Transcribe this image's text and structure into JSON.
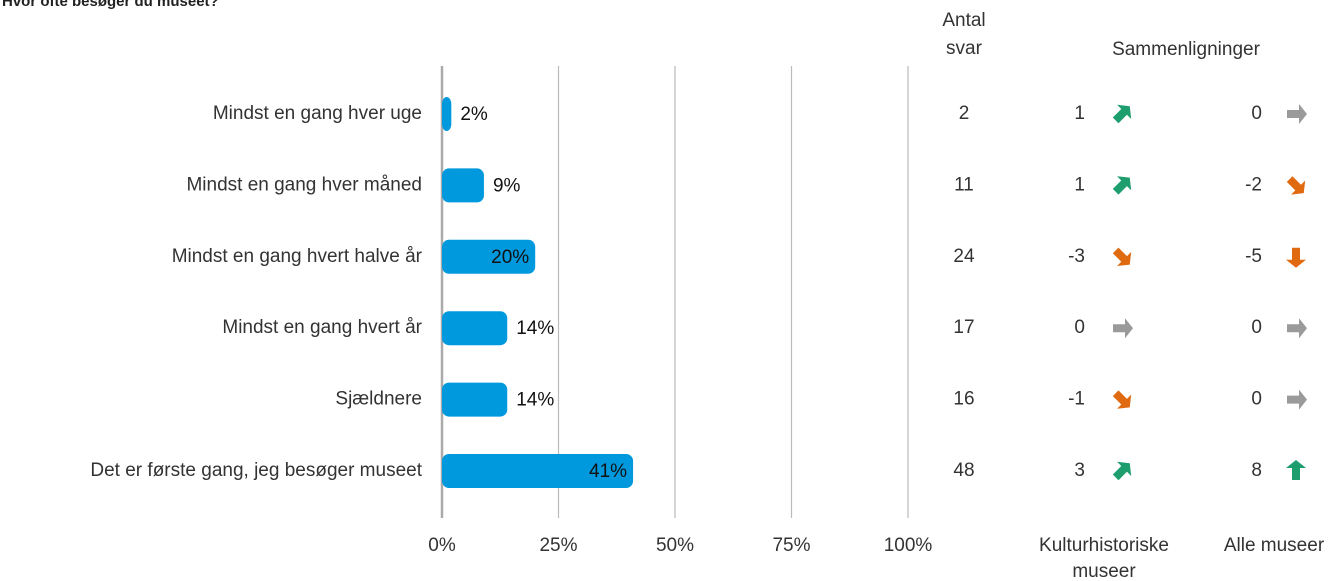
{
  "chart_data": {
    "type": "bar",
    "orientation": "horizontal",
    "title": "Hvor ofte besøger du museet?",
    "categories": [
      "Mindst en gang hver uge",
      "Mindst en gang hver måned",
      "Mindst en gang hvert halve år",
      "Mindst en gang hvert år",
      "Sjældnere",
      "Det er første gang, jeg besøger museet"
    ],
    "values": [
      2,
      9,
      20,
      14,
      14,
      41
    ],
    "value_labels": [
      "2%",
      "9%",
      "20%",
      "14%",
      "14%",
      "41%"
    ],
    "xlim": [
      0,
      100
    ],
    "xticks": [
      "0%",
      "25%",
      "50%",
      "75%",
      "100%"
    ],
    "grid": true,
    "bar_color": "#0099DD",
    "table": {
      "count_header": [
        "Antal",
        "svar"
      ],
      "comparison_header": "Sammenligninger",
      "counts": [
        2,
        11,
        24,
        17,
        16,
        48
      ],
      "comparisons": [
        {
          "label": [
            "Kulturhistoriske",
            "museer"
          ],
          "values": [
            "1",
            "1",
            "-3",
            "0",
            "-1",
            "3"
          ],
          "arrows": [
            "up-right",
            "up-right",
            "down-right",
            "right",
            "down-right",
            "up-right"
          ]
        },
        {
          "label": [
            "Alle museer"
          ],
          "values": [
            "0",
            "-2",
            "-5",
            "0",
            "0",
            "8"
          ],
          "arrows": [
            "right",
            "down-right",
            "down",
            "right",
            "right",
            "up"
          ]
        }
      ]
    },
    "arrow_colors": {
      "up": "#1E9E6E",
      "up-right": "#1E9E6E",
      "right": "#9A9A9A",
      "down-right": "#E06A10",
      "down": "#E06A10"
    }
  }
}
